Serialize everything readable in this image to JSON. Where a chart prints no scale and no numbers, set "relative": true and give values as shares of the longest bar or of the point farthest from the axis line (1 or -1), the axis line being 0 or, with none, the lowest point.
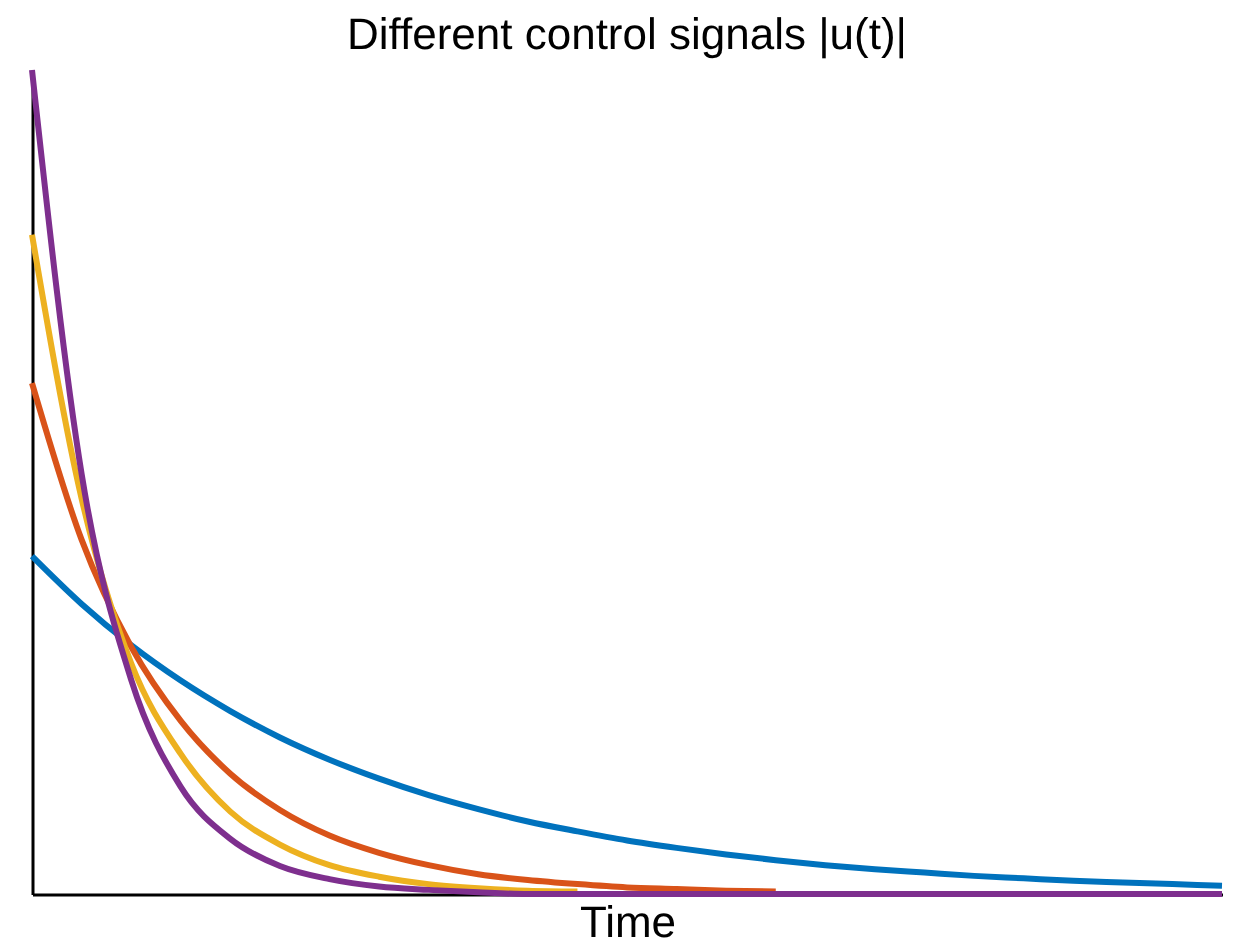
{
  "chart_data": {
    "type": "line",
    "title": "Different control signals |u(t)|",
    "xlabel": "Time",
    "relative": true,
    "legend": false,
    "grid": false,
    "categories": [
      null,
      null,
      null,
      null,
      null,
      null,
      null,
      null,
      null,
      null,
      null,
      null,
      null,
      null,
      null,
      null,
      null,
      null,
      null,
      null,
      null,
      null,
      null,
      null,
      null
    ],
    "series": [
      {
        "color": "#0072bd",
        "values": [
          0.41,
          0.352,
          0.302,
          0.259,
          0.222,
          0.19,
          0.163,
          0.14,
          0.12,
          0.103,
          0.088,
          0.076,
          0.065,
          0.056,
          0.048,
          0.041,
          0.035,
          0.03,
          0.026,
          0.022,
          0.019,
          0.016,
          0.014,
          0.012,
          0.01
        ]
      },
      {
        "color": "#d95319",
        "values": [
          0.62,
          0.43,
          0.3,
          0.21,
          0.146,
          0.102,
          0.071,
          0.05,
          0.035,
          0.024,
          0.017,
          0.012,
          0.008,
          0.006,
          0.004,
          0.003,
          null,
          null,
          null,
          null,
          null,
          null,
          null,
          null,
          null
        ]
      },
      {
        "color": "#edb120",
        "values": [
          0.8,
          0.48,
          0.28,
          0.17,
          0.1,
          0.06,
          0.035,
          0.021,
          0.012,
          0.007,
          0.004,
          0.003,
          null,
          null,
          null,
          null,
          null,
          null,
          null,
          null,
          null,
          null,
          null,
          null,
          null
        ]
      },
      {
        "color": "#7e2f8e",
        "values": [
          1,
          0.51,
          0.26,
          0.13,
          0.067,
          0.034,
          0.018,
          0.009,
          0.005,
          0.002,
          0,
          0,
          0,
          0,
          0,
          0,
          0,
          0,
          0,
          0,
          0,
          0,
          0,
          0,
          0
        ]
      }
    ]
  }
}
